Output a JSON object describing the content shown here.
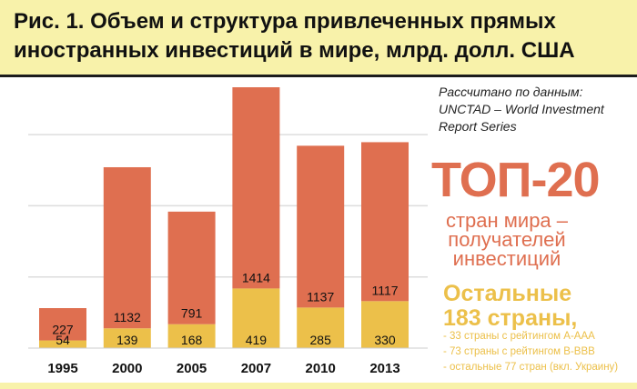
{
  "title": "Рис. 1. Объем и структура привлеченных прямых иностранных инвестиций в мире, млрд. долл. США",
  "source": [
    "Рассчитано по данным:",
    "UNCTAD – World Investment",
    "Report Series"
  ],
  "legend": {
    "top_label": "ТОП-20",
    "top_sub": [
      "стран мира –",
      "получателей",
      "инвестиций"
    ],
    "rest_label": [
      "Остальные",
      "183 страны,"
    ],
    "rest_notes": [
      "- 33 страны с рейтингом A-AAA",
      "- 73 страны с рейтингом B-BBB",
      "- остальные 77 стран (вкл. Украину)"
    ]
  },
  "colors": {
    "top20": "#df6f50",
    "rest": "#ecc04a"
  },
  "chart_data": {
    "type": "bar",
    "stacked": true,
    "categories": [
      "1995",
      "2000",
      "2005",
      "2007",
      "2010",
      "2013"
    ],
    "series": [
      {
        "name": "Остальные 183 страны",
        "values": [
          54,
          139,
          168,
          419,
          285,
          330
        ]
      },
      {
        "name": "ТОП-20",
        "values": [
          227,
          1132,
          791,
          1414,
          1137,
          1117
        ]
      }
    ],
    "ylim": [
      0,
      1900
    ],
    "gridlines": [
      500,
      1000,
      1500
    ],
    "grid": true
  }
}
